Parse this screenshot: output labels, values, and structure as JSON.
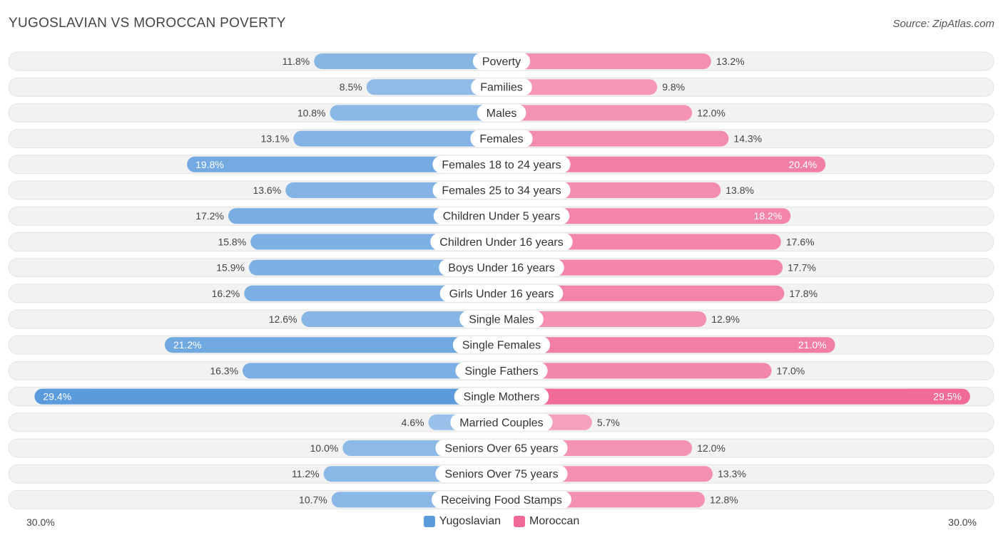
{
  "title": "YUGOSLAVIAN VS MOROCCAN POVERTY",
  "source": "Source: ZipAtlas.com",
  "colors": {
    "yugoslavian": "#5b9bdc",
    "moroccan": "#f06b96",
    "row_bg": "#f1f1f1"
  },
  "chart_data": {
    "type": "bar",
    "orientation": "horizontal-diverging",
    "categories": [
      "Poverty",
      "Families",
      "Males",
      "Females",
      "Females 18 to 24 years",
      "Females 25 to 34 years",
      "Children Under 5 years",
      "Children Under 16 years",
      "Boys Under 16 years",
      "Girls Under 16 years",
      "Single Males",
      "Single Females",
      "Single Fathers",
      "Single Mothers",
      "Married Couples",
      "Seniors Over 65 years",
      "Seniors Over 75 years",
      "Receiving Food Stamps"
    ],
    "series": [
      {
        "name": "Yugoslavian",
        "values": [
          11.8,
          8.5,
          10.8,
          13.1,
          19.8,
          13.6,
          17.2,
          15.8,
          15.9,
          16.2,
          12.6,
          21.2,
          16.3,
          29.4,
          4.6,
          10.0,
          11.2,
          10.7
        ],
        "labels": [
          "11.8%",
          "8.5%",
          "10.8%",
          "13.1%",
          "19.8%",
          "13.6%",
          "17.2%",
          "15.8%",
          "15.9%",
          "16.2%",
          "12.6%",
          "21.2%",
          "16.3%",
          "29.4%",
          "4.6%",
          "10.0%",
          "11.2%",
          "10.7%"
        ]
      },
      {
        "name": "Moroccan",
        "values": [
          13.2,
          9.8,
          12.0,
          14.3,
          20.4,
          13.8,
          18.2,
          17.6,
          17.7,
          17.8,
          12.9,
          21.0,
          17.0,
          29.5,
          5.7,
          12.0,
          13.3,
          12.8
        ],
        "labels": [
          "13.2%",
          "9.8%",
          "12.0%",
          "14.3%",
          "20.4%",
          "13.8%",
          "18.2%",
          "17.6%",
          "17.7%",
          "17.8%",
          "12.9%",
          "21.0%",
          "17.0%",
          "29.5%",
          "5.7%",
          "12.0%",
          "13.3%",
          "12.8%"
        ]
      }
    ],
    "xlim": [
      0,
      30
    ],
    "axis_left_label": "30.0%",
    "axis_right_label": "30.0%",
    "legend": [
      "Yugoslavian",
      "Moroccan"
    ],
    "legend_position": "bottom-center"
  }
}
